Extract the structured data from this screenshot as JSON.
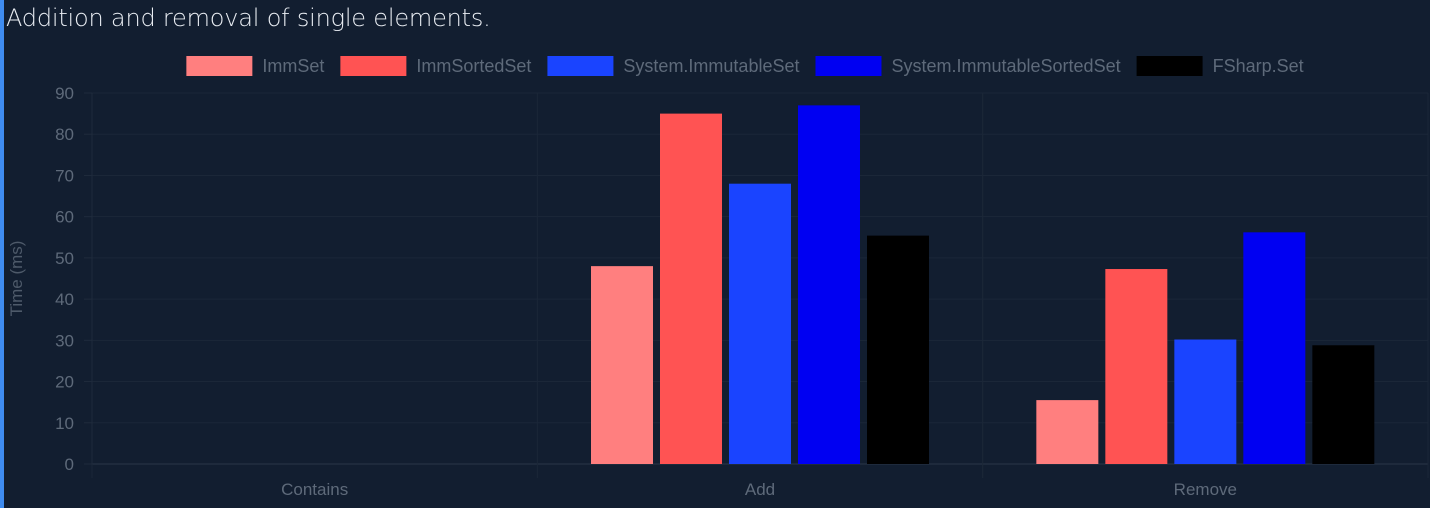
{
  "title": "Addition and removal of single elements.",
  "chart_data": {
    "type": "bar",
    "categories": [
      "Contains",
      "Add",
      "Remove"
    ],
    "ylabel": "Time (ms)",
    "xlabel": "",
    "ylim": [
      0,
      90
    ],
    "yticks": [
      0,
      10,
      20,
      30,
      40,
      50,
      60,
      70,
      80,
      90
    ],
    "grid": true,
    "legend_position": "top",
    "series": [
      {
        "name": "ImmSet",
        "color": "#ff7f7f",
        "values": [
          0,
          48,
          15.5
        ]
      },
      {
        "name": "ImmSortedSet",
        "color": "#ff5353",
        "values": [
          0,
          85,
          47.3
        ]
      },
      {
        "name": "System.ImmutableSet",
        "color": "#1a44ff",
        "values": [
          0,
          68,
          30.2
        ]
      },
      {
        "name": "System.ImmutableSortedSet",
        "color": "#0000f2",
        "values": [
          0,
          87,
          56.2
        ]
      },
      {
        "name": "FSharp.Set",
        "color": "#000000",
        "values": [
          0,
          55.4,
          28.8
        ]
      }
    ]
  }
}
